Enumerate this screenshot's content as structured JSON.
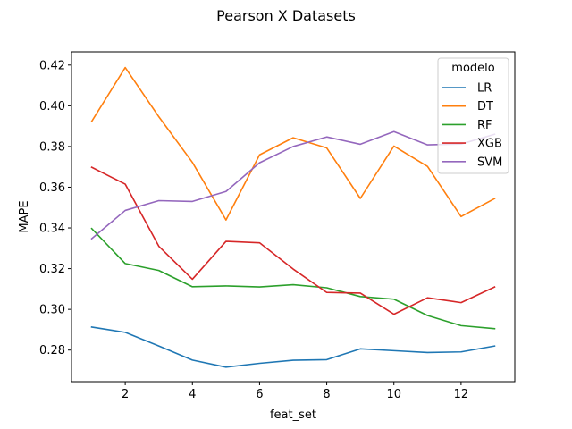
{
  "chart_data": {
    "type": "line",
    "title": "Pearson X Datasets",
    "xlabel": "feat_set",
    "ylabel": "MAPE",
    "x": [
      1,
      2,
      3,
      4,
      5,
      6,
      7,
      8,
      9,
      10,
      11,
      12,
      13
    ],
    "xlim": [
      0.4,
      13.6
    ],
    "ylim": [
      0.2645,
      0.4265
    ],
    "xticks": [
      2,
      4,
      6,
      8,
      10,
      12
    ],
    "yticks": [
      0.28,
      0.3,
      0.32,
      0.34,
      0.36,
      0.38,
      0.4,
      0.42
    ],
    "ytick_labels": [
      "0.28",
      "0.30",
      "0.32",
      "0.34",
      "0.36",
      "0.38",
      "0.40",
      "0.42"
    ],
    "grid": false,
    "legend": {
      "title": "modelo",
      "placement": "upper-right"
    },
    "series": [
      {
        "name": "LR",
        "color": "#1f77b4",
        "values": [
          0.2913,
          0.2887,
          0.282,
          0.2751,
          0.2716,
          0.2735,
          0.275,
          0.2753,
          0.2806,
          0.2797,
          0.2788,
          0.2791,
          0.282
        ]
      },
      {
        "name": "DT",
        "color": "#ff7f0e",
        "values": [
          0.3923,
          0.4188,
          0.3946,
          0.3722,
          0.3439,
          0.3759,
          0.3843,
          0.3793,
          0.3545,
          0.3802,
          0.3702,
          0.3456,
          0.3544
        ]
      },
      {
        "name": "RF",
        "color": "#2ca02c",
        "values": [
          0.3397,
          0.3225,
          0.3191,
          0.3111,
          0.3115,
          0.311,
          0.3121,
          0.3106,
          0.3063,
          0.305,
          0.297,
          0.292,
          0.2905
        ]
      },
      {
        "name": "XGB",
        "color": "#d62728",
        "values": [
          0.3698,
          0.3615,
          0.331,
          0.3148,
          0.3334,
          0.3327,
          0.3198,
          0.3083,
          0.308,
          0.2976,
          0.3057,
          0.3033,
          0.311
        ]
      },
      {
        "name": "SVM",
        "color": "#9467bd",
        "values": [
          0.3347,
          0.3486,
          0.3534,
          0.353,
          0.3579,
          0.372,
          0.38,
          0.3847,
          0.3811,
          0.3873,
          0.3808,
          0.3812,
          0.386
        ]
      }
    ]
  }
}
